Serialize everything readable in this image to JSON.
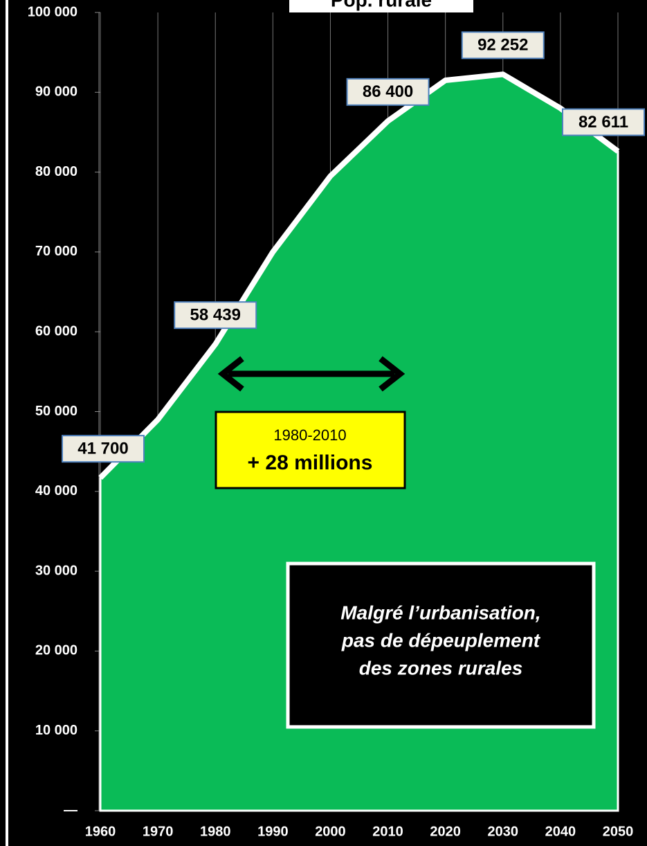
{
  "chart_data": {
    "type": "area",
    "title": "Pop. rurale",
    "x": [
      1960,
      1970,
      1980,
      1990,
      2000,
      2010,
      2020,
      2030,
      2040,
      2050
    ],
    "values": [
      41700,
      49000,
      58439,
      70000,
      79500,
      86400,
      91500,
      92252,
      88000,
      82611
    ],
    "value_labels": [
      "41 700",
      null,
      "58 439",
      null,
      null,
      "86 400",
      null,
      "92 252",
      null,
      "82 611"
    ],
    "color": "#0abb57",
    "xlim": [
      1960,
      2050
    ],
    "xticks": [
      1960,
      1970,
      1980,
      1990,
      2000,
      2010,
      2020,
      2030,
      2040,
      2050
    ],
    "ylim": [
      0,
      100000
    ],
    "yticks": [
      {
        "value": 0,
        "label": "—"
      },
      {
        "value": 10000,
        "label": "10 000"
      },
      {
        "value": 20000,
        "label": "20 000"
      },
      {
        "value": 30000,
        "label": "30 000"
      },
      {
        "value": 40000,
        "label": "40 000"
      },
      {
        "value": 50000,
        "label": "50 000"
      },
      {
        "value": 60000,
        "label": "60 000"
      },
      {
        "value": 70000,
        "label": "70 000"
      },
      {
        "value": 80000,
        "label": "80 000"
      },
      {
        "value": 90000,
        "label": "90 000"
      },
      {
        "value": 100000,
        "label": "100 000"
      }
    ],
    "grid": true,
    "annotations": {
      "period": "1980-2010",
      "increase": "+ 28 millions",
      "note": [
        "Malgré l’urbanisation,",
        "pas de dépeuplement",
        "des zones rurales"
      ]
    }
  }
}
